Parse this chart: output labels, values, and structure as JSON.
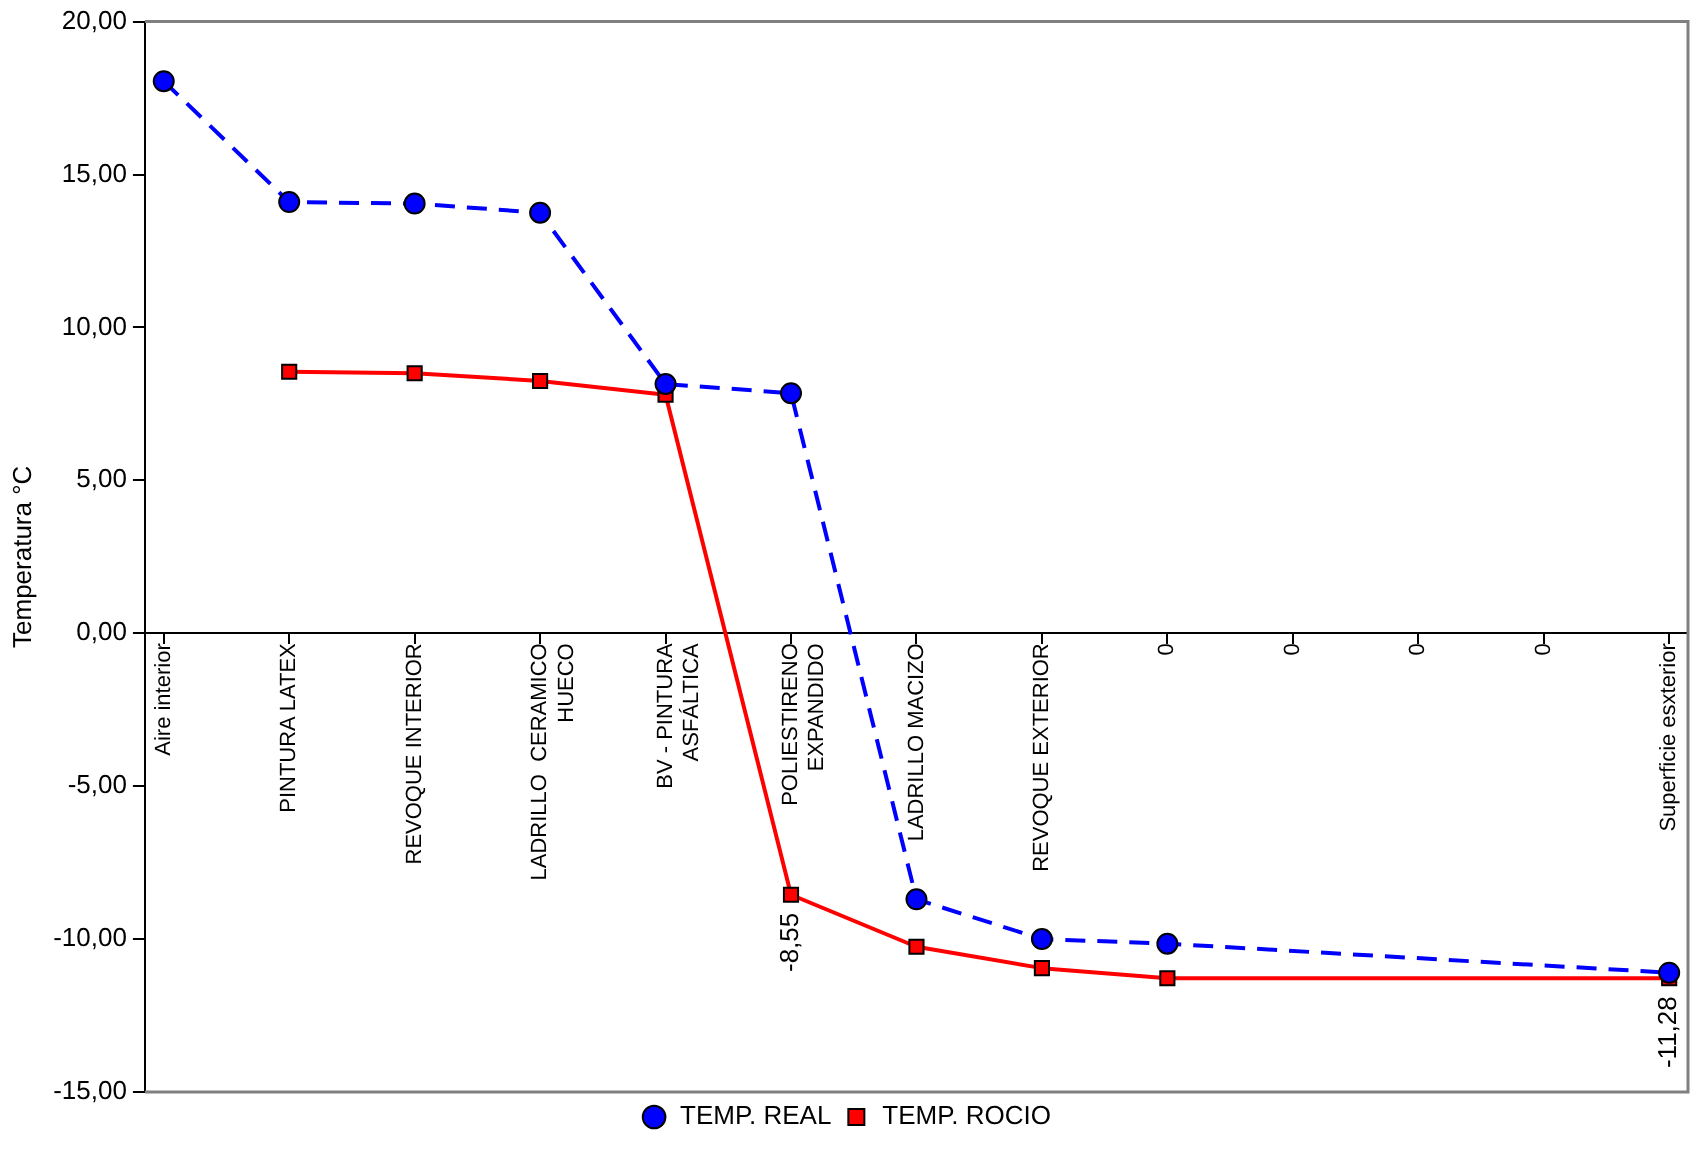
{
  "chart_data": {
    "type": "line",
    "ylabel": "Temperatura °C",
    "categories": [
      "Aire interior",
      "PINTURA LATEX",
      "REVOQUE INTERIOR",
      [
        "LADRILLO  CERAMICO",
        "HUECO"
      ],
      [
        "BV - PINTURA",
        "ASFÁLTICA"
      ],
      [
        "POLIESTIRENO",
        "EXPANDIDO"
      ],
      "LADRILLO MACIZO",
      "REVOQUE EXTERIOR",
      "0",
      "0",
      "0",
      "0",
      "Superficie esxterior"
    ],
    "series": [
      {
        "name": "TEMP. REAL",
        "color": "#0000ff",
        "marker": "circle",
        "line_style": "dashed",
        "values": [
          18.05,
          14.1,
          14.05,
          13.75,
          8.15,
          7.85,
          -8.7,
          -10.0,
          -10.15,
          null,
          null,
          null,
          -11.1
        ]
      },
      {
        "name": "TEMP. ROCIO",
        "color": "#ff0000",
        "marker": "square",
        "line_style": "solid",
        "values": [
          null,
          8.55,
          8.5,
          8.25,
          7.8,
          -8.55,
          -10.25,
          -10.95,
          -11.28,
          null,
          null,
          null,
          -11.28
        ],
        "value_labels": [
          null,
          null,
          null,
          null,
          null,
          "-8,55",
          null,
          null,
          null,
          null,
          null,
          null,
          "-11,28"
        ]
      }
    ],
    "ylim": [
      -15,
      20
    ],
    "yticks": [
      {
        "value": -15,
        "label": "-15,00"
      },
      {
        "value": -10,
        "label": "-10,00"
      },
      {
        "value": -5,
        "label": "-5,00"
      },
      {
        "value": 0,
        "label": "0,00"
      },
      {
        "value": 5,
        "label": "5,00"
      },
      {
        "value": 10,
        "label": "10,00"
      },
      {
        "value": 15,
        "label": "15,00"
      },
      {
        "value": 20,
        "label": "20,00"
      }
    ],
    "grid": false,
    "legend": "bottom"
  }
}
